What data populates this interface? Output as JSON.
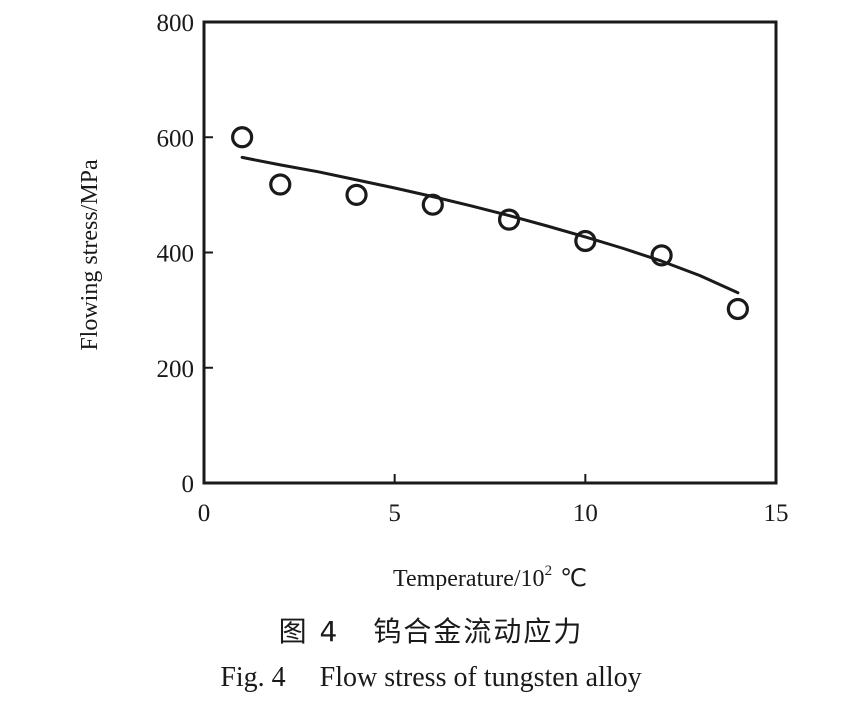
{
  "chart_data": {
    "type": "scatter",
    "xlabel_prefix": "Temperature/10",
    "xlabel_sup": "2",
    "xlabel_unit": "℃",
    "ylabel": "Flowing stress/MPa",
    "xlim": [
      0,
      15
    ],
    "ylim": [
      0,
      800
    ],
    "x_ticks": [
      0,
      5,
      10,
      15
    ],
    "y_ticks": [
      0,
      200,
      400,
      600,
      800
    ],
    "grid": false,
    "points": [
      {
        "x": 1,
        "y": 600
      },
      {
        "x": 2,
        "y": 518
      },
      {
        "x": 4,
        "y": 500
      },
      {
        "x": 6,
        "y": 483
      },
      {
        "x": 8,
        "y": 457
      },
      {
        "x": 10,
        "y": 420
      },
      {
        "x": 12,
        "y": 395
      },
      {
        "x": 14,
        "y": 302
      }
    ],
    "fit_line": [
      {
        "x": 1,
        "y": 565
      },
      {
        "x": 2,
        "y": 552
      },
      {
        "x": 3,
        "y": 540
      },
      {
        "x": 4,
        "y": 526
      },
      {
        "x": 5,
        "y": 512
      },
      {
        "x": 6,
        "y": 497
      },
      {
        "x": 7,
        "y": 481
      },
      {
        "x": 8,
        "y": 464
      },
      {
        "x": 9,
        "y": 446
      },
      {
        "x": 10,
        "y": 427
      },
      {
        "x": 11,
        "y": 407
      },
      {
        "x": 12,
        "y": 385
      },
      {
        "x": 13,
        "y": 360
      },
      {
        "x": 14,
        "y": 330
      }
    ]
  },
  "caption": {
    "cn_fig": "图 4",
    "cn_title": "钨合金流动应力",
    "en_fig": "Fig. 4",
    "en_title": "Flow stress of tungsten alloy"
  }
}
